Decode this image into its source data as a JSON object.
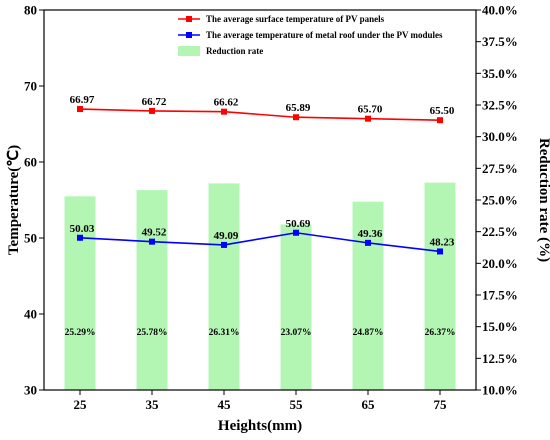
{
  "chart_data": {
    "type": "bar+line",
    "xlabel": "Heights(mm)",
    "ylabel_left": "Temperature(℃)",
    "ylabel_right": "Reduction rate  (%)",
    "categories": [
      "25",
      "35",
      "45",
      "55",
      "65",
      "75"
    ],
    "ylim_left": [
      30,
      80
    ],
    "yticks_left": [
      "30",
      "40",
      "50",
      "60",
      "70",
      "80"
    ],
    "ylim_right": [
      10,
      40
    ],
    "yticks_right": [
      "10.0%",
      "12.5%",
      "15.0%",
      "17.5%",
      "20.0%",
      "22.5%",
      "25.0%",
      "27.5%",
      "30.0%",
      "32.5%",
      "35.0%",
      "37.5%",
      "40.0%"
    ],
    "grid": false,
    "legend_position": "top-right",
    "series": [
      {
        "name": "The average surface temperature of PV panels",
        "kind": "line",
        "axis": "left",
        "color": "#ff0000",
        "marker": "square",
        "values": [
          66.97,
          66.72,
          66.62,
          65.89,
          65.7,
          65.5
        ],
        "labels": [
          "66.97",
          "66.72",
          "66.62",
          "65.89",
          "65.70",
          "65.50"
        ]
      },
      {
        "name": "The average temperature of metal roof under the PV modules",
        "kind": "line",
        "axis": "left",
        "color": "#0000ff",
        "marker": "square",
        "values": [
          50.03,
          49.52,
          49.09,
          50.69,
          49.36,
          48.23
        ],
        "labels": [
          "50.03",
          "49.52",
          "49.09",
          "50.69",
          "49.36",
          "48.23"
        ]
      },
      {
        "name": "Reduction rate",
        "kind": "bar",
        "axis": "right",
        "color": "#b3f5b3",
        "values": [
          25.29,
          25.78,
          26.31,
          23.07,
          24.87,
          26.37
        ],
        "labels": [
          "25.29%",
          "25.78%",
          "26.31%",
          "23.07%",
          "24.87%",
          "26.37%"
        ]
      }
    ]
  }
}
